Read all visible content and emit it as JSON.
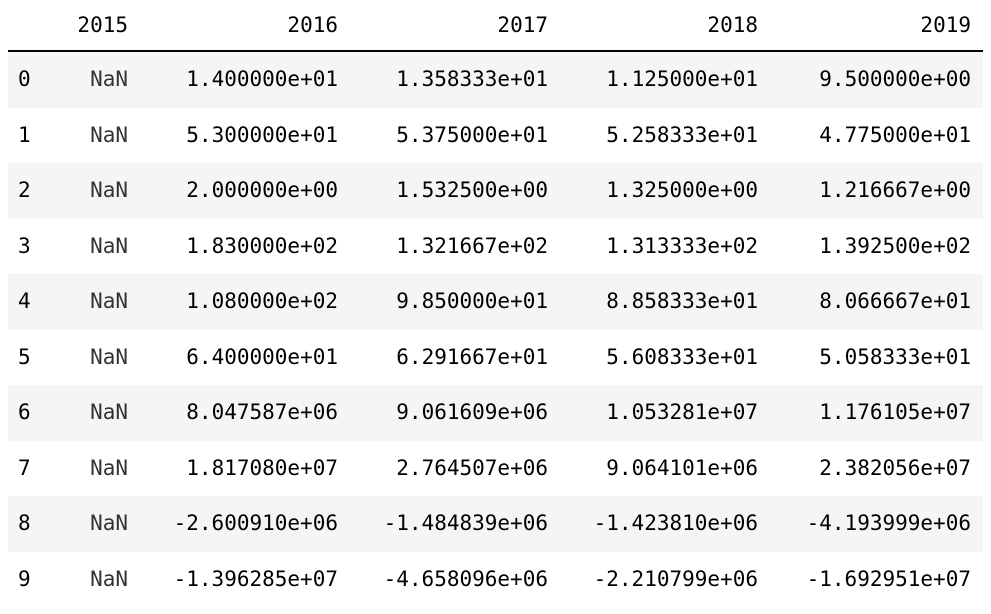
{
  "table": {
    "columns": [
      "",
      "2015",
      "2016",
      "2017",
      "2018",
      "2019"
    ],
    "rows": [
      {
        "index": "0",
        "values": [
          "NaN",
          "1.400000e+01",
          "1.358333e+01",
          "1.125000e+01",
          "9.500000e+00"
        ]
      },
      {
        "index": "1",
        "values": [
          "NaN",
          "5.300000e+01",
          "5.375000e+01",
          "5.258333e+01",
          "4.775000e+01"
        ]
      },
      {
        "index": "2",
        "values": [
          "NaN",
          "2.000000e+00",
          "1.532500e+00",
          "1.325000e+00",
          "1.216667e+00"
        ]
      },
      {
        "index": "3",
        "values": [
          "NaN",
          "1.830000e+02",
          "1.321667e+02",
          "1.313333e+02",
          "1.392500e+02"
        ]
      },
      {
        "index": "4",
        "values": [
          "NaN",
          "1.080000e+02",
          "9.850000e+01",
          "8.858333e+01",
          "8.066667e+01"
        ]
      },
      {
        "index": "5",
        "values": [
          "NaN",
          "6.400000e+01",
          "6.291667e+01",
          "5.608333e+01",
          "5.058333e+01"
        ]
      },
      {
        "index": "6",
        "values": [
          "NaN",
          "8.047587e+06",
          "9.061609e+06",
          "1.053281e+07",
          "1.176105e+07"
        ]
      },
      {
        "index": "7",
        "values": [
          "NaN",
          "1.817080e+07",
          "2.764507e+06",
          "9.064101e+06",
          "2.382056e+07"
        ]
      },
      {
        "index": "8",
        "values": [
          "NaN",
          "-2.600910e+06",
          "-1.484839e+06",
          "-1.423810e+06",
          "-4.193999e+06"
        ]
      },
      {
        "index": "9",
        "values": [
          "NaN",
          "-1.396285e+07",
          "-4.658096e+06",
          "-2.210799e+06",
          "-1.692951e+07"
        ]
      }
    ]
  },
  "colors": {
    "stripe": "#f5f5f5",
    "header_rule": "#000000",
    "text": "#000000"
  }
}
